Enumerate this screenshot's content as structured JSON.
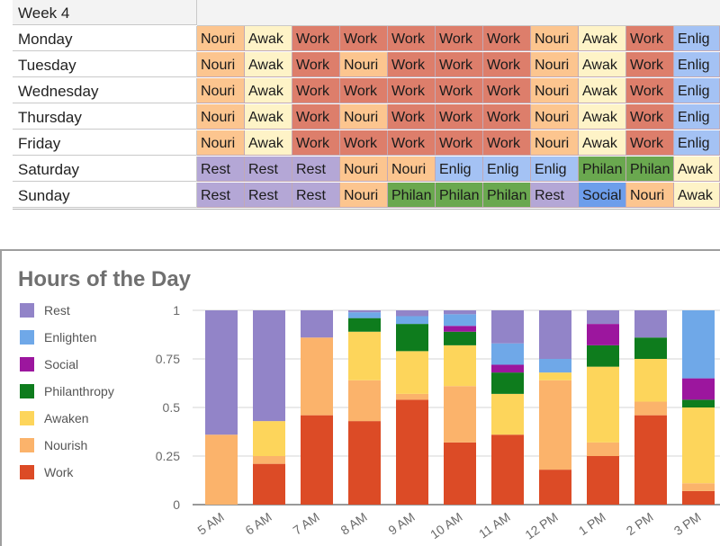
{
  "schedule": {
    "header": "Week 4",
    "colors": {
      "Nouri": "#fcc58f",
      "Awak": "#fef3c7",
      "Work": "#dd7e6b",
      "Enlig": "#a4c2f4",
      "Rest": "#b4a7d6",
      "Philan": "#6aa84f",
      "Social": "#6d9eeb"
    },
    "rows": [
      {
        "day": "Monday",
        "cells": [
          "Nouri",
          "Awak",
          "Work",
          "Work",
          "Work",
          "Work",
          "Work",
          "Nouri",
          "Awak",
          "Work",
          "Enlig"
        ]
      },
      {
        "day": "Tuesday",
        "cells": [
          "Nouri",
          "Awak",
          "Work",
          "Nouri",
          "Work",
          "Work",
          "Work",
          "Nouri",
          "Awak",
          "Work",
          "Enlig"
        ]
      },
      {
        "day": "Wednesday",
        "cells": [
          "Nouri",
          "Awak",
          "Work",
          "Work",
          "Work",
          "Work",
          "Work",
          "Nouri",
          "Awak",
          "Work",
          "Enlig"
        ]
      },
      {
        "day": "Thursday",
        "cells": [
          "Nouri",
          "Awak",
          "Work",
          "Nouri",
          "Work",
          "Work",
          "Work",
          "Nouri",
          "Awak",
          "Work",
          "Enlig"
        ]
      },
      {
        "day": "Friday",
        "cells": [
          "Nouri",
          "Awak",
          "Work",
          "Work",
          "Work",
          "Work",
          "Work",
          "Nouri",
          "Awak",
          "Work",
          "Enlig"
        ]
      },
      {
        "day": "Saturday",
        "cells": [
          "Rest",
          "Rest",
          "Rest",
          "Nouri",
          "Nouri",
          "Enlig",
          "Enlig",
          "Enlig",
          "Philan",
          "Philan",
          "Awak"
        ]
      },
      {
        "day": "Sunday",
        "cells": [
          "Rest",
          "Rest",
          "Rest",
          "Nouri",
          "Philan",
          "Philan",
          "Philan",
          "Rest",
          "Social",
          "Nouri",
          "Awak"
        ]
      }
    ]
  },
  "chart_data": {
    "type": "bar",
    "stacked": true,
    "normalized": true,
    "title": "Hours of the Day",
    "xlabel": "",
    "ylabel": "",
    "ylim": [
      0,
      1
    ],
    "yticks": [
      "0",
      "0.25",
      "0.5",
      "0.75",
      "1"
    ],
    "grid": true,
    "legend_position": "left",
    "categories": [
      "5 AM",
      "6 AM",
      "7 AM",
      "8 AM",
      "9 AM",
      "10 AM",
      "11 AM",
      "12 PM",
      "1 PM",
      "2 PM",
      "3 PM"
    ],
    "series": [
      {
        "name": "Work",
        "color": "#dc4b26",
        "values": [
          0.0,
          0.21,
          0.46,
          0.43,
          0.54,
          0.32,
          0.36,
          0.18,
          0.25,
          0.46,
          0.07
        ]
      },
      {
        "name": "Nourish",
        "color": "#fbb36b",
        "values": [
          0.36,
          0.04,
          0.4,
          0.21,
          0.03,
          0.29,
          0.0,
          0.46,
          0.07,
          0.07,
          0.04
        ]
      },
      {
        "name": "Awaken",
        "color": "#fdd55b",
        "values": [
          0.0,
          0.18,
          0.0,
          0.25,
          0.22,
          0.21,
          0.21,
          0.04,
          0.39,
          0.22,
          0.39
        ]
      },
      {
        "name": "Philanthropy",
        "color": "#0e7c1d",
        "values": [
          0.0,
          0.0,
          0.0,
          0.07,
          0.14,
          0.07,
          0.11,
          0.0,
          0.11,
          0.11,
          0.04
        ]
      },
      {
        "name": "Social",
        "color": "#9c169e",
        "values": [
          0.0,
          0.0,
          0.0,
          0.0,
          0.0,
          0.03,
          0.04,
          0.0,
          0.11,
          0.0,
          0.11
        ]
      },
      {
        "name": "Enlighten",
        "color": "#6fa8e8",
        "values": [
          0.0,
          0.0,
          0.0,
          0.03,
          0.04,
          0.06,
          0.11,
          0.07,
          0.0,
          0.0,
          0.35
        ]
      },
      {
        "name": "Rest",
        "color": "#9284c8",
        "values": [
          0.64,
          0.57,
          0.14,
          0.01,
          0.03,
          0.02,
          0.17,
          0.25,
          0.07,
          0.14,
          0.0
        ]
      }
    ],
    "legend_order": [
      "Rest",
      "Enlighten",
      "Social",
      "Philanthropy",
      "Awaken",
      "Nourish",
      "Work"
    ]
  }
}
